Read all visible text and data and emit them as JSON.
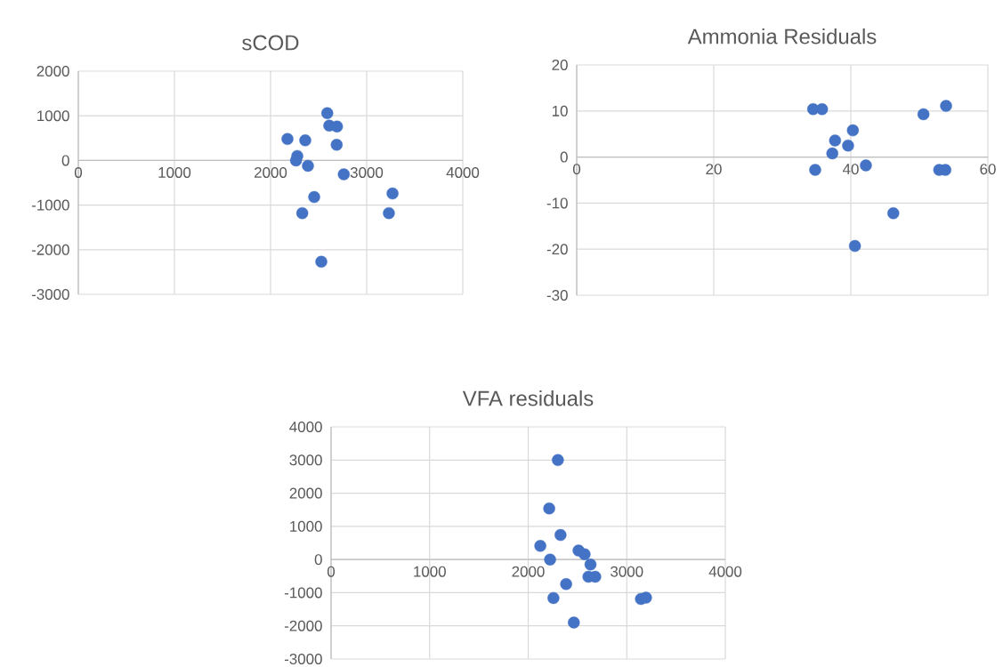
{
  "chart_data": [
    {
      "type": "scatter",
      "title": "sCOD",
      "color": "#4472c4",
      "marker": "circle",
      "grid": true,
      "x": [
        2590,
        2611,
        2691,
        2176,
        2361,
        2688,
        2278,
        2265,
        2389,
        2762,
        3269,
        2454,
        2330,
        3231,
        2528
      ],
      "values": [
        1060,
        780,
        760,
        480,
        450,
        350,
        100,
        0,
        -120,
        -310,
        -740,
        -820,
        -1180,
        -1180,
        -2270
      ],
      "xlim": [
        0,
        4000
      ],
      "ylim": [
        -3000,
        2000
      ],
      "xticks": [
        0,
        1000,
        2000,
        3000,
        4000
      ],
      "yticks": [
        -3000,
        -2000,
        -1000,
        0,
        1000,
        2000
      ]
    },
    {
      "type": "scatter",
      "title": "Ammonia Residuals",
      "color": "#4472c4",
      "marker": "circle",
      "grid": true,
      "x": [
        34.5,
        35.8,
        53.9,
        50.6,
        40.3,
        37.7,
        39.6,
        37.3,
        34.8,
        42.2,
        52.9,
        53.8,
        46.2,
        40.6
      ],
      "values": [
        10.4,
        10.4,
        11.1,
        9.3,
        5.8,
        3.6,
        2.5,
        0.8,
        -2.8,
        -1.8,
        -2.8,
        -2.8,
        -12.2,
        -19.3
      ],
      "xlim": [
        0,
        60
      ],
      "ylim": [
        -30,
        20
      ],
      "xticks": [
        0,
        20,
        40,
        60
      ],
      "yticks": [
        -30,
        -20,
        -10,
        0,
        10,
        20
      ]
    },
    {
      "type": "scatter",
      "title": "VFA residuals",
      "color": "#4472c4",
      "marker": "circle",
      "grid": true,
      "x": [
        2301,
        2213,
        2328,
        2123,
        2511,
        2572,
        2222,
        2632,
        2611,
        2680,
        2385,
        2256,
        3144,
        3195,
        2463
      ],
      "values": [
        3000,
        1540,
        740,
        410,
        270,
        160,
        0,
        -150,
        -520,
        -520,
        -740,
        -1160,
        -1190,
        -1150,
        -1900
      ],
      "xlim": [
        0,
        4000
      ],
      "ylim": [
        -3000,
        4000
      ],
      "xticks": [
        0,
        1000,
        2000,
        3000,
        4000
      ],
      "yticks": [
        -3000,
        -2000,
        -1000,
        0,
        1000,
        2000,
        3000,
        4000
      ]
    }
  ]
}
